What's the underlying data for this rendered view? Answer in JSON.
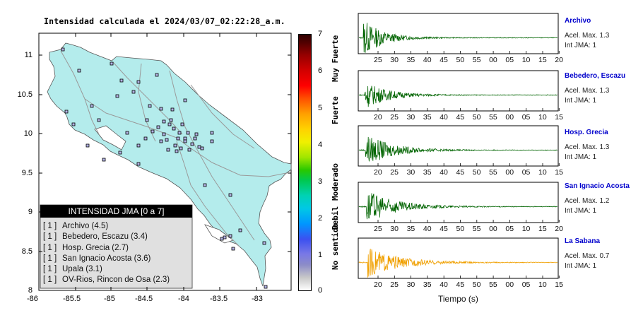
{
  "title": "Intensidad calculada el 2024/03/07_02:22:28_a.m.",
  "map": {
    "x_ticks": [
      "-86",
      "-85.5",
      "-85",
      "-84.5",
      "-84",
      "-83.5",
      "-83"
    ],
    "y_ticks": [
      "11",
      "10.5",
      "10",
      "9.5",
      "9",
      "8.5",
      "8"
    ],
    "xlim": [
      -86,
      -83
    ],
    "ylim": [
      8,
      11.3
    ],
    "land_color": "#b4ecec",
    "station_count": 60
  },
  "legend": {
    "title": "INTENSIDAD JMA [0 a 7]",
    "items": [
      {
        "badge": "[ 1 ]",
        "label": "Archivo (4.5)"
      },
      {
        "badge": "[ 1 ]",
        "label": "Bebedero, Escazu (3.4)"
      },
      {
        "badge": "[ 1 ]",
        "label": "Hosp. Grecia (2.7)"
      },
      {
        "badge": "[ 1 ]",
        "label": "San Ignacio Acosta (3.6)"
      },
      {
        "badge": "[ 1 ]",
        "label": "Upala (3.1)"
      },
      {
        "badge": "[ 1 ]",
        "label": "OV-Rios, Rincon de Osa (2.3)"
      }
    ]
  },
  "colorbar": {
    "ticks": [
      "0",
      "1",
      "2",
      "3",
      "4",
      "5",
      "6",
      "7"
    ],
    "categories": [
      "No sentido",
      "Debil",
      "Moderado",
      "Fuerte",
      "Muy Fuerte"
    ],
    "range": [
      0,
      7
    ]
  },
  "chart_data": [
    {
      "type": "map-scatter",
      "title": "Intensidad calculada el 2024/03/07_02:22:28_a.m.",
      "xlim": [
        -86,
        -83
      ],
      "ylim": [
        8,
        11.3
      ],
      "grid": false,
      "legend_position": "bottom-left",
      "stations": [
        {
          "name": "Archivo",
          "intensity": 4.5,
          "count": 1
        },
        {
          "name": "Bebedero, Escazu",
          "intensity": 3.4,
          "count": 1
        },
        {
          "name": "Hosp. Grecia",
          "intensity": 2.7,
          "count": 1
        },
        {
          "name": "San Ignacio Acosta",
          "intensity": 3.6,
          "count": 1
        },
        {
          "name": "Upala",
          "intensity": 3.1,
          "count": 1
        },
        {
          "name": "OV-Rios, Rincon de Osa",
          "intensity": 2.3,
          "count": 1
        }
      ]
    },
    {
      "type": "line",
      "xlabel": "Tiempo (s)",
      "grid": false,
      "series": [
        {
          "name": "Archivo",
          "peak": "Acel. Max. 1.3",
          "jma": "Int JMA: 1",
          "color": "#006400",
          "amplitude": 1.0,
          "tick_labels": [
            "25",
            "30",
            "35",
            "40",
            "45",
            "50",
            "55",
            "00",
            "05",
            "10",
            "15",
            "20"
          ]
        },
        {
          "name": "Bebedero, Escazu",
          "peak": "Acel. Max. 1.3",
          "jma": "Int JMA: 1",
          "color": "#006400",
          "amplitude": 0.75,
          "tick_labels": [
            "20",
            "25",
            "30",
            "35",
            "40",
            "45",
            "50",
            "55",
            "00",
            "05",
            "10",
            "15"
          ]
        },
        {
          "name": "Hosp. Grecia",
          "peak": "Acel. Max. 1.3",
          "jma": "Int JMA: 1",
          "color": "#006400",
          "amplitude": 0.9,
          "tick_labels": [
            "20",
            "25",
            "30",
            "35",
            "40",
            "45",
            "50",
            "55",
            "00",
            "05",
            "10",
            "15"
          ]
        },
        {
          "name": "San Ignacio Acosta",
          "peak": "Acel. Max. 1.2",
          "jma": "Int JMA: 1",
          "color": "#006400",
          "amplitude": 0.9,
          "tick_labels": [
            "25",
            "30",
            "35",
            "40",
            "45",
            "50",
            "55",
            "00",
            "05",
            "10",
            "15",
            "20"
          ]
        },
        {
          "name": "La Sabana",
          "peak": "Acel. Max. 0.7",
          "jma": "Int JMA: 1",
          "color": "#f0a000",
          "amplitude": 0.8,
          "tick_labels": [
            "20",
            "25",
            "30",
            "35",
            "40",
            "45",
            "50",
            "55",
            "00",
            "05",
            "10",
            "15"
          ]
        }
      ]
    }
  ]
}
